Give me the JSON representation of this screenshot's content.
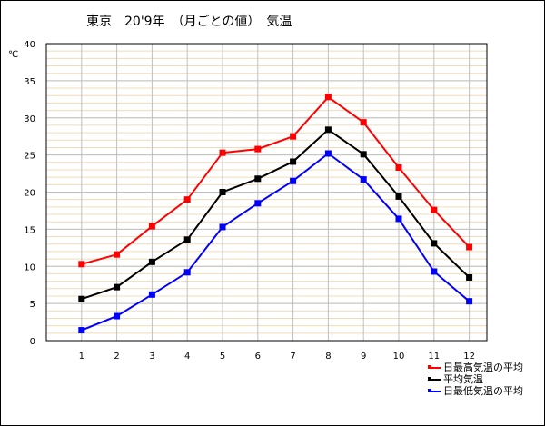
{
  "title": "東京　20'9年　（月ごとの値）　気温",
  "chart_data": {
    "type": "line",
    "title": "東京　20'9年　（月ごとの値）　気温",
    "ylabel": "℃",
    "xlabel": "",
    "categories": [
      "1",
      "2",
      "3",
      "4",
      "5",
      "6",
      "7",
      "8",
      "9",
      "10",
      "11",
      "12"
    ],
    "ylim": [
      0,
      40
    ],
    "yticks": [
      "0",
      "5",
      "10",
      "15",
      "20",
      "25",
      "30",
      "35",
      "40"
    ],
    "ytick_values": [
      0,
      5,
      10,
      15,
      20,
      25,
      30,
      35,
      40
    ],
    "minor_grid_step": 1,
    "grid": true,
    "legend_position": "bottom-right",
    "series": [
      {
        "name": "日最高気温の平均",
        "color": "#ff0000",
        "values": [
          10.3,
          11.6,
          15.4,
          19.0,
          25.3,
          25.8,
          27.5,
          32.8,
          29.4,
          23.3,
          17.6,
          12.6
        ]
      },
      {
        "name": "平均気温",
        "color": "#000000",
        "values": [
          5.6,
          7.2,
          10.6,
          13.6,
          20.0,
          21.8,
          24.1,
          28.4,
          25.1,
          19.4,
          13.1,
          8.5
        ]
      },
      {
        "name": "日最低気温の平均",
        "color": "#0000ff",
        "values": [
          1.4,
          3.3,
          6.2,
          9.2,
          15.3,
          18.5,
          21.5,
          25.2,
          21.7,
          16.4,
          9.3,
          5.3
        ]
      }
    ],
    "colors": {
      "major_grid": "#c0c0c0",
      "minor_grid": "#f0dcb8",
      "axis": "#000000"
    }
  }
}
